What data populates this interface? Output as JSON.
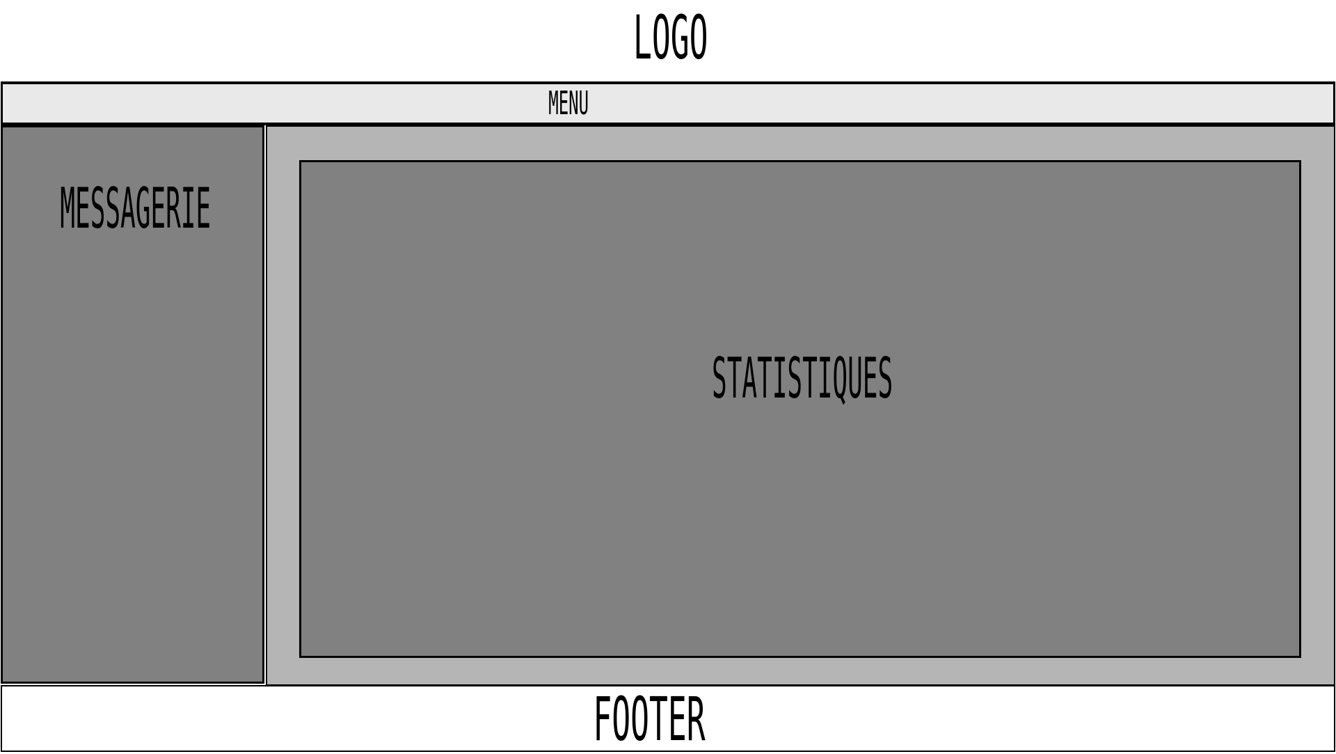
{
  "header": {
    "logo_label": "LOGO"
  },
  "menu": {
    "label": "MENU"
  },
  "sidebar": {
    "title": "MESSAGERIE"
  },
  "main": {
    "stats_label": "STATISTIQUES"
  },
  "footer": {
    "label": "FOOTER"
  },
  "colors": {
    "page_background": "#ffffff",
    "menu_background": "#e9e9e9",
    "panel_dark": "#818181",
    "content_background": "#b5b5b5",
    "border": "#000000"
  }
}
